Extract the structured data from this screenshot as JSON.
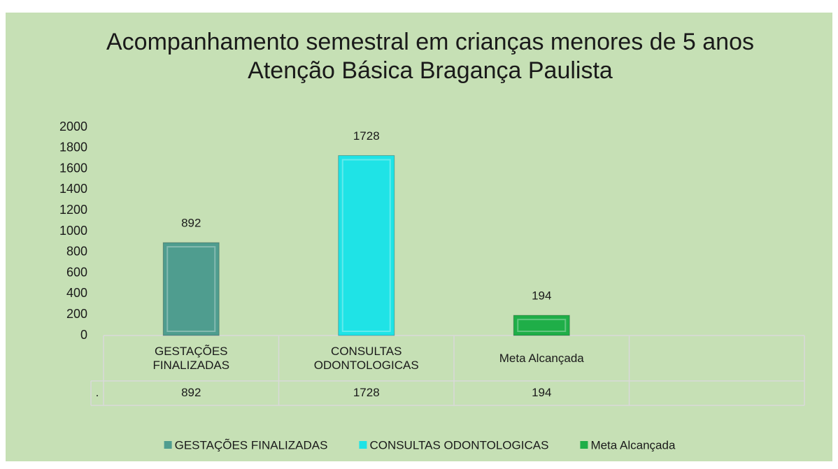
{
  "chart_data": {
    "type": "bar",
    "title": [
      "Acompanhamento semestral em crianças menores de 5 anos",
      "Atenção Básica  Bragança Paulista"
    ],
    "categories": [
      "GESTAÇÕES FINALIZADAS",
      "CONSULTAS ODONTOLOGICAS",
      "Meta Alcançada",
      null
    ],
    "series": [
      {
        "name": ".",
        "colors": [
          "#4f9d8f",
          "#1fe3e6",
          "#1fae48"
        ],
        "values": [
          892,
          1728,
          194,
          null
        ]
      }
    ],
    "ylim": [
      0,
      2000
    ],
    "yticks": [
      0,
      200,
      400,
      600,
      800,
      1000,
      1200,
      1400,
      1600,
      1800,
      2000
    ],
    "grid": false,
    "legend": "bottom",
    "data_table": true
  }
}
